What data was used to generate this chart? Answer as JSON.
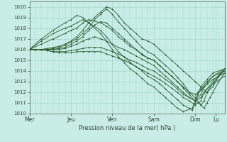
{
  "title": "Pression niveau de la mer( hPa )",
  "bg_color": "#c8ece6",
  "grid_color": "#a8d8cc",
  "line_color": "#2d5a2d",
  "ylim": [
    1010,
    1020.5
  ],
  "yticks": [
    1010,
    1011,
    1012,
    1013,
    1014,
    1015,
    1016,
    1017,
    1018,
    1019,
    1020
  ],
  "day_labels": [
    "Mer",
    "Jeu",
    "Ven",
    "Sam",
    "Dim",
    "Lu"
  ],
  "day_positions": [
    0,
    56,
    112,
    168,
    224,
    252
  ],
  "xlim": [
    0,
    264
  ],
  "lines": [
    [
      0,
      1016,
      8,
      1016,
      16,
      1016,
      24,
      1016.1,
      32,
      1016.2,
      40,
      1016.3,
      48,
      1016.5,
      56,
      1016.8,
      64,
      1017.2,
      72,
      1017.8,
      80,
      1018.5,
      88,
      1019.0,
      96,
      1019.5,
      104,
      1020.0,
      112,
      1019.8,
      120,
      1019.2,
      128,
      1018.5,
      136,
      1018.0,
      144,
      1017.5,
      152,
      1017.0,
      160,
      1016.8,
      168,
      1016.5,
      176,
      1016.0,
      184,
      1015.5,
      192,
      1015.0,
      200,
      1014.5,
      208,
      1014.0,
      216,
      1013.5,
      224,
      1013.0,
      232,
      1012.5,
      240,
      1012.0,
      248,
      1012.5,
      256,
      1013.5,
      264,
      1014.2
    ],
    [
      0,
      1016,
      8,
      1016,
      16,
      1016,
      24,
      1016.0,
      32,
      1016.1,
      40,
      1016.2,
      48,
      1016.4,
      56,
      1016.7,
      64,
      1017.0,
      72,
      1017.5,
      80,
      1018.0,
      88,
      1018.8,
      96,
      1019.3,
      104,
      1019.8,
      112,
      1019.3,
      120,
      1018.6,
      128,
      1018.0,
      136,
      1017.4,
      144,
      1016.8,
      152,
      1016.2,
      160,
      1015.8,
      168,
      1015.5,
      176,
      1015.0,
      184,
      1014.5,
      192,
      1014.0,
      200,
      1013.4,
      208,
      1012.8,
      216,
      1012.0,
      224,
      1011.5,
      232,
      1010.8,
      236,
      1010.5,
      240,
      1011.0,
      244,
      1011.5,
      248,
      1012.0,
      256,
      1013.0,
      264,
      1013.8
    ],
    [
      0,
      1016,
      8,
      1016,
      16,
      1016,
      24,
      1016.0,
      32,
      1016.0,
      40,
      1016.1,
      48,
      1016.2,
      56,
      1016.5,
      64,
      1016.8,
      72,
      1017.2,
      80,
      1017.8,
      88,
      1018.3,
      96,
      1018.6,
      104,
      1018.5,
      112,
      1018.0,
      120,
      1017.5,
      128,
      1017.0,
      136,
      1016.5,
      144,
      1016.0,
      152,
      1015.5,
      160,
      1015.2,
      168,
      1015.0,
      176,
      1014.5,
      184,
      1014.0,
      192,
      1013.5,
      200,
      1013.0,
      208,
      1012.4,
      216,
      1011.8,
      224,
      1011.2,
      232,
      1010.8,
      236,
      1011.2,
      240,
      1012.0,
      248,
      1012.8,
      256,
      1013.5,
      264,
      1014.0
    ],
    [
      0,
      1016,
      8,
      1016,
      16,
      1016,
      24,
      1016.0,
      32,
      1016.0,
      40,
      1016.0,
      48,
      1016.1,
      56,
      1016.3,
      64,
      1016.5,
      72,
      1016.8,
      80,
      1017.0,
      88,
      1017.2,
      96,
      1017.0,
      104,
      1016.8,
      112,
      1016.5,
      120,
      1016.2,
      128,
      1016.0,
      136,
      1015.7,
      144,
      1015.4,
      152,
      1015.1,
      160,
      1014.8,
      168,
      1014.5,
      176,
      1014.0,
      184,
      1013.5,
      192,
      1013.0,
      200,
      1012.5,
      208,
      1012.0,
      216,
      1011.5,
      224,
      1011.2,
      232,
      1011.5,
      236,
      1012.0,
      248,
      1013.0,
      264,
      1014.2
    ],
    [
      0,
      1016,
      8,
      1016,
      16,
      1016,
      24,
      1015.9,
      32,
      1015.8,
      40,
      1015.8,
      48,
      1015.8,
      56,
      1015.9,
      64,
      1016.0,
      72,
      1016.1,
      80,
      1016.2,
      88,
      1016.2,
      96,
      1016.2,
      104,
      1016.0,
      112,
      1015.8,
      120,
      1015.6,
      128,
      1015.3,
      136,
      1015.0,
      144,
      1014.8,
      152,
      1014.5,
      160,
      1014.2,
      168,
      1014.0,
      176,
      1013.6,
      184,
      1013.2,
      192,
      1012.8,
      200,
      1012.3,
      208,
      1011.8,
      216,
      1011.5,
      224,
      1011.2,
      232,
      1011.8,
      236,
      1012.5,
      248,
      1013.2,
      264,
      1013.8
    ],
    [
      0,
      1016,
      8,
      1016,
      16,
      1016,
      24,
      1015.9,
      32,
      1015.8,
      40,
      1015.7,
      48,
      1015.7,
      56,
      1015.7,
      64,
      1015.8,
      72,
      1015.8,
      80,
      1015.8,
      88,
      1015.8,
      96,
      1015.8,
      104,
      1015.6,
      112,
      1015.4,
      120,
      1015.2,
      128,
      1015.0,
      136,
      1014.7,
      144,
      1014.4,
      152,
      1014.1,
      160,
      1013.8,
      168,
      1013.5,
      176,
      1013.2,
      184,
      1012.8,
      192,
      1012.4,
      200,
      1012.0,
      208,
      1011.5,
      216,
      1011.2,
      224,
      1010.8,
      232,
      1011.2,
      236,
      1012.0,
      248,
      1012.8,
      264,
      1013.5
    ],
    [
      0,
      1016,
      16,
      1016.5,
      32,
      1017.0,
      48,
      1017.5,
      56,
      1017.8,
      64,
      1018.0,
      72,
      1018.5,
      80,
      1018.8,
      96,
      1018.5,
      104,
      1018.2,
      112,
      1017.8,
      120,
      1017.2,
      128,
      1016.8,
      136,
      1016.3,
      144,
      1016.0,
      152,
      1015.6,
      160,
      1015.2,
      168,
      1015.0,
      176,
      1014.5,
      184,
      1014.0,
      192,
      1013.5,
      200,
      1013.0,
      208,
      1012.5,
      216,
      1012.0,
      224,
      1011.8,
      232,
      1012.2,
      240,
      1012.8,
      248,
      1013.5,
      264,
      1014.2
    ],
    [
      0,
      1016,
      16,
      1016.8,
      32,
      1017.5,
      48,
      1018.0,
      56,
      1018.2,
      64,
      1018.5,
      72,
      1018.8,
      80,
      1018.5,
      96,
      1017.8,
      104,
      1017.2,
      112,
      1016.5,
      120,
      1015.8,
      128,
      1015.3,
      136,
      1014.8,
      144,
      1014.4,
      152,
      1014.0,
      160,
      1013.5,
      168,
      1013.2,
      176,
      1012.8,
      184,
      1012.3,
      192,
      1011.8,
      200,
      1011.3,
      208,
      1010.8,
      216,
      1010.5,
      220,
      1010.3,
      224,
      1011.0,
      228,
      1011.8,
      232,
      1012.3,
      240,
      1013.0,
      248,
      1013.5,
      264,
      1014.0
    ],
    [
      0,
      1016,
      16,
      1017.0,
      32,
      1017.8,
      48,
      1018.5,
      56,
      1018.8,
      64,
      1019.2,
      72,
      1019.0,
      80,
      1018.5,
      96,
      1017.5,
      104,
      1016.8,
      112,
      1016.0,
      120,
      1015.3,
      128,
      1014.8,
      136,
      1014.2,
      144,
      1013.8,
      152,
      1013.3,
      160,
      1012.8,
      168,
      1012.5,
      176,
      1012.0,
      184,
      1011.5,
      192,
      1011.0,
      200,
      1010.5,
      208,
      1010.2,
      220,
      1010.5,
      224,
      1011.2,
      228,
      1012.0,
      232,
      1012.5,
      240,
      1013.2,
      248,
      1013.8,
      264,
      1014.2
    ]
  ]
}
